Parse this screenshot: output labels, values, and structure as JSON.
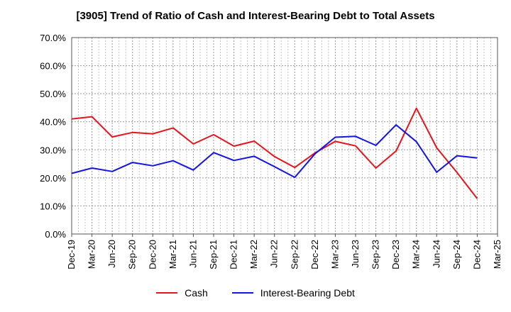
{
  "chart_data": {
    "type": "line",
    "title": "[3905]  Trend of Ratio of Cash and Interest-Bearing Debt to Total Assets",
    "xlabel": "",
    "ylabel": "",
    "ylim": [
      0,
      70
    ],
    "y_ticks": [
      "0.0%",
      "10.0%",
      "20.0%",
      "30.0%",
      "40.0%",
      "50.0%",
      "60.0%",
      "70.0%"
    ],
    "categories": [
      "Dec-19",
      "Mar-20",
      "Jun-20",
      "Sep-20",
      "Dec-20",
      "Mar-21",
      "Jun-21",
      "Sep-21",
      "Dec-21",
      "Mar-22",
      "Jun-22",
      "Sep-22",
      "Dec-22",
      "Mar-23",
      "Jun-23",
      "Sep-23",
      "Dec-23",
      "Mar-24",
      "Jun-24",
      "Sep-24",
      "Dec-24",
      "Mar-25"
    ],
    "grid": true,
    "legend_position": "bottom",
    "series": [
      {
        "name": "Cash",
        "color": "#e8141b",
        "values": [
          41.0,
          41.8,
          34.6,
          36.2,
          35.7,
          37.8,
          32.1,
          35.4,
          31.3,
          33.1,
          27.6,
          23.7,
          28.9,
          33.0,
          31.4,
          23.5,
          29.6,
          44.8,
          30.7,
          21.9,
          12.6,
          null
        ]
      },
      {
        "name": "Interest-Bearing Debt",
        "color": "#1414e6",
        "values": [
          21.6,
          23.5,
          22.3,
          25.5,
          24.3,
          26.1,
          22.8,
          29.0,
          26.2,
          27.7,
          24.0,
          20.2,
          28.6,
          34.5,
          34.8,
          31.6,
          38.9,
          32.9,
          22.0,
          27.9,
          27.1,
          null
        ]
      }
    ]
  }
}
